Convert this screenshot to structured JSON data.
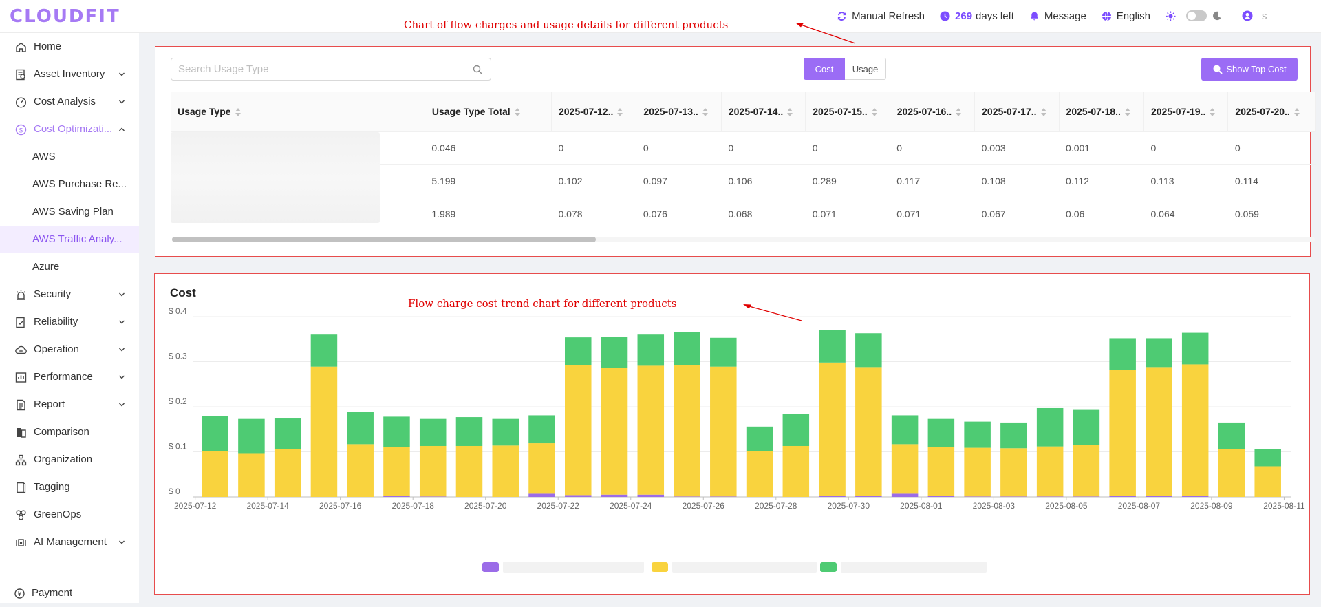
{
  "app": {
    "logo": "CLOUDFIT"
  },
  "topbar": {
    "refresh_label": "Manual Refresh",
    "days_count": "269",
    "days_suffix": "days left",
    "message_label": "Message",
    "language_label": "English",
    "user_name": "s"
  },
  "sidebar": {
    "items": [
      {
        "label": "Home",
        "icon": "home-icon"
      },
      {
        "label": "Asset Inventory",
        "icon": "inventory-icon"
      },
      {
        "label": "Cost Analysis",
        "icon": "dashboard-icon"
      },
      {
        "label": "Cost Optimizati...",
        "icon": "dollar-icon"
      },
      {
        "label": "AWS"
      },
      {
        "label": "AWS Purchase Re..."
      },
      {
        "label": "AWS Saving Plan"
      },
      {
        "label": "AWS Traffic Analy..."
      },
      {
        "label": "Azure"
      },
      {
        "label": "Security",
        "icon": "alarm-icon"
      },
      {
        "label": "Reliability",
        "icon": "reliability-icon"
      },
      {
        "label": "Operation",
        "icon": "cloud-icon"
      },
      {
        "label": "Performance",
        "icon": "performance-icon"
      },
      {
        "label": "Report",
        "icon": "report-icon"
      },
      {
        "label": "Comparison",
        "icon": "comparison-icon"
      },
      {
        "label": "Organization",
        "icon": "organization-icon"
      },
      {
        "label": "Tagging",
        "icon": "tag-icon"
      },
      {
        "label": "GreenOps",
        "icon": "greenops-icon"
      },
      {
        "label": "AI Management",
        "icon": "ai-icon"
      },
      {
        "label": "Payment",
        "icon": "payment-icon"
      }
    ]
  },
  "annotations": {
    "table_note": "Chart of flow charges and usage details for different products",
    "chart_note": "Flow charge cost trend chart for different products"
  },
  "usage_panel": {
    "search_placeholder": "Search Usage Type",
    "seg_cost": "Cost",
    "seg_usage": "Usage",
    "top_cost_label": "Show Top Cost",
    "columns": [
      "Usage Type",
      "Usage Type Total",
      "2025-07-12..",
      "2025-07-13..",
      "2025-07-14..",
      "2025-07-15..",
      "2025-07-16..",
      "2025-07-17..",
      "2025-07-18..",
      "2025-07-19..",
      "2025-07-20.."
    ],
    "rows": [
      [
        "",
        "0.046",
        "0",
        "0",
        "0",
        "0",
        "0",
        "0.003",
        "0.001",
        "0",
        "0"
      ],
      [
        "",
        "5.199",
        "0.102",
        "0.097",
        "0.106",
        "0.289",
        "0.117",
        "0.108",
        "0.112",
        "0.113",
        "0.114"
      ],
      [
        "",
        "1.989",
        "0.078",
        "0.076",
        "0.068",
        "0.071",
        "0.071",
        "0.067",
        "0.06",
        "0.064",
        "0.059"
      ]
    ]
  },
  "chart_panel": {
    "title": "Cost"
  },
  "colors": {
    "accent": "#9b6cf5",
    "series_purple": "#9b6ce8",
    "series_yellow": "#f9d33e",
    "series_green": "#4ecb73",
    "annotation": "#e00000"
  },
  "chart_data": {
    "type": "bar",
    "stacked": true,
    "title": "Cost",
    "ylim": [
      0,
      0.4
    ],
    "y_ticks": [
      "$ 0",
      "$ 0.1",
      "$ 0.2",
      "$ 0.3",
      "$ 0.4"
    ],
    "x_tick_labels": [
      "2025-07-12",
      "2025-07-14",
      "2025-07-16",
      "2025-07-18",
      "2025-07-20",
      "2025-07-22",
      "2025-07-24",
      "2025-07-26",
      "2025-07-28",
      "2025-07-30",
      "2025-08-01",
      "2025-08-03",
      "2025-08-05",
      "2025-08-07",
      "2025-08-09",
      "2025-08-11"
    ],
    "categories": [
      "2025-07-12",
      "2025-07-13",
      "2025-07-14",
      "2025-07-15",
      "2025-07-16",
      "2025-07-17",
      "2025-07-18",
      "2025-07-19",
      "2025-07-20",
      "2025-07-21",
      "2025-07-22",
      "2025-07-23",
      "2025-07-24",
      "2025-07-25",
      "2025-07-26",
      "2025-07-27",
      "2025-07-28",
      "2025-07-29",
      "2025-07-30",
      "2025-07-31",
      "2025-08-01",
      "2025-08-02",
      "2025-08-03",
      "2025-08-04",
      "2025-08-05",
      "2025-08-06",
      "2025-08-07",
      "2025-08-08",
      "2025-08-09",
      "2025-08-10"
    ],
    "series": [
      {
        "color": "#9b6ce8",
        "values": [
          0,
          0,
          0,
          0,
          0,
          0.003,
          0.001,
          0,
          0,
          0.007,
          0.004,
          0.005,
          0.005,
          0.001,
          0.001,
          0,
          0,
          0.003,
          0.003,
          0.007,
          0.002,
          0.001,
          0.001,
          0.001,
          0.001,
          0.003,
          0.002,
          0.002,
          0,
          0
        ]
      },
      {
        "color": "#f9d33e",
        "values": [
          0.102,
          0.097,
          0.106,
          0.289,
          0.117,
          0.108,
          0.112,
          0.113,
          0.114,
          0.112,
          0.288,
          0.281,
          0.286,
          0.292,
          0.288,
          0.102,
          0.113,
          0.295,
          0.285,
          0.11,
          0.108,
          0.108,
          0.107,
          0.111,
          0.114,
          0.278,
          0.286,
          0.292,
          0.106,
          0.068
        ]
      },
      {
        "color": "#4ecb73",
        "values": [
          0.078,
          0.076,
          0.068,
          0.071,
          0.071,
          0.067,
          0.06,
          0.064,
          0.059,
          0.062,
          0.062,
          0.069,
          0.069,
          0.072,
          0.064,
          0.054,
          0.071,
          0.072,
          0.075,
          0.064,
          0.063,
          0.058,
          0.057,
          0.085,
          0.078,
          0.071,
          0.064,
          0.07,
          0.059,
          0.038
        ]
      }
    ]
  }
}
